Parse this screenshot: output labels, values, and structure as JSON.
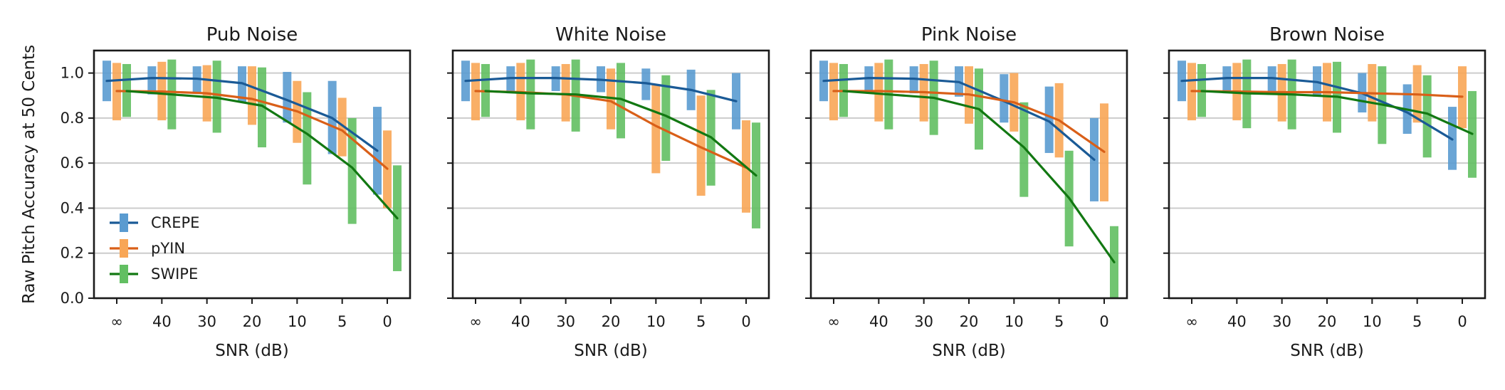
{
  "figure": {
    "ylabel": "Raw Pitch Accuracy at 50 Cents",
    "xlabel": "SNR (dB)",
    "legend_placement": "lower-left of first panel"
  },
  "chart_data": [
    {
      "type": "line",
      "title": "Pub Noise",
      "xlabel": "SNR (dB)",
      "ylabel": "Raw Pitch Accuracy at 50 Cents",
      "categories": [
        "∞",
        "40",
        "30",
        "20",
        "10",
        "5",
        "0"
      ],
      "ylim": [
        0,
        1.1
      ],
      "yticks": [
        "0.0",
        "0.2",
        "0.4",
        "0.6",
        "0.8",
        "1.0"
      ],
      "grid": "horizontal",
      "series": [
        {
          "name": "CREPE",
          "color": "#1a5a96",
          "bar_color": "#5a9bd0",
          "values": [
            0.965,
            0.978,
            0.975,
            0.955,
            0.88,
            0.8,
            0.655
          ],
          "low": [
            0.875,
            0.905,
            0.91,
            0.87,
            0.78,
            0.64,
            0.46
          ],
          "high": [
            1.055,
            1.03,
            1.03,
            1.03,
            1.005,
            0.965,
            0.85
          ]
        },
        {
          "name": "pYIN",
          "color": "#d95f18",
          "bar_color": "#f8a656",
          "values": [
            0.92,
            0.918,
            0.91,
            0.885,
            0.83,
            0.745,
            0.575
          ],
          "low": [
            0.79,
            0.79,
            0.785,
            0.77,
            0.69,
            0.63,
            0.4
          ],
          "high": [
            1.045,
            1.05,
            1.035,
            1.03,
            0.965,
            0.89,
            0.745
          ]
        },
        {
          "name": "SWIPE",
          "color": "#127812",
          "bar_color": "#62bf62",
          "values": [
            0.92,
            0.905,
            0.89,
            0.855,
            0.73,
            0.58,
            0.355
          ],
          "low": [
            0.805,
            0.75,
            0.735,
            0.67,
            0.505,
            0.33,
            0.12
          ],
          "high": [
            1.04,
            1.06,
            1.055,
            1.025,
            0.915,
            0.8,
            0.59
          ]
        }
      ]
    },
    {
      "type": "line",
      "title": "White Noise",
      "xlabel": "SNR (dB)",
      "categories": [
        "∞",
        "40",
        "30",
        "20",
        "10",
        "5",
        "0"
      ],
      "ylim": [
        0,
        1.1
      ],
      "grid": "horizontal",
      "series": [
        {
          "name": "CREPE",
          "color": "#1a5a96",
          "bar_color": "#5a9bd0",
          "values": [
            0.965,
            0.978,
            0.978,
            0.97,
            0.955,
            0.925,
            0.875
          ],
          "low": [
            0.875,
            0.91,
            0.92,
            0.915,
            0.88,
            0.835,
            0.75
          ],
          "high": [
            1.055,
            1.03,
            1.03,
            1.03,
            1.02,
            1.015,
            1.0
          ]
        },
        {
          "name": "pYIN",
          "color": "#d95f18",
          "bar_color": "#f8a656",
          "values": [
            0.92,
            0.915,
            0.905,
            0.875,
            0.765,
            0.67,
            0.58
          ],
          "low": [
            0.79,
            0.79,
            0.785,
            0.75,
            0.555,
            0.455,
            0.38
          ],
          "high": [
            1.045,
            1.045,
            1.04,
            1.02,
            0.95,
            0.9,
            0.79
          ]
        },
        {
          "name": "SWIPE",
          "color": "#127812",
          "bar_color": "#62bf62",
          "values": [
            0.92,
            0.91,
            0.905,
            0.885,
            0.81,
            0.715,
            0.545
          ],
          "low": [
            0.805,
            0.75,
            0.74,
            0.71,
            0.61,
            0.5,
            0.31
          ],
          "high": [
            1.04,
            1.06,
            1.06,
            1.045,
            0.99,
            0.925,
            0.78
          ]
        }
      ]
    },
    {
      "type": "line",
      "title": "Pink Noise",
      "xlabel": "SNR (dB)",
      "categories": [
        "∞",
        "40",
        "30",
        "20",
        "10",
        "5",
        "0"
      ],
      "ylim": [
        0,
        1.1
      ],
      "grid": "horizontal",
      "series": [
        {
          "name": "CREPE",
          "color": "#1a5a96",
          "bar_color": "#5a9bd0",
          "values": [
            0.965,
            0.978,
            0.975,
            0.96,
            0.875,
            0.785,
            0.615
          ],
          "low": [
            0.875,
            0.915,
            0.91,
            0.895,
            0.78,
            0.645,
            0.43
          ],
          "high": [
            1.055,
            1.03,
            1.03,
            1.03,
            0.995,
            0.94,
            0.8
          ]
        },
        {
          "name": "pYIN",
          "color": "#d95f18",
          "bar_color": "#f8a656",
          "values": [
            0.92,
            0.92,
            0.915,
            0.905,
            0.87,
            0.79,
            0.65
          ],
          "low": [
            0.79,
            0.785,
            0.785,
            0.775,
            0.74,
            0.625,
            0.43
          ],
          "high": [
            1.045,
            1.045,
            1.04,
            1.03,
            1.0,
            0.955,
            0.865
          ]
        },
        {
          "name": "SWIPE",
          "color": "#127812",
          "bar_color": "#62bf62",
          "values": [
            0.92,
            0.905,
            0.89,
            0.84,
            0.67,
            0.445,
            0.16
          ],
          "low": [
            0.805,
            0.75,
            0.725,
            0.66,
            0.45,
            0.23,
            0.0
          ],
          "high": [
            1.04,
            1.06,
            1.055,
            1.02,
            0.87,
            0.655,
            0.32
          ]
        }
      ]
    },
    {
      "type": "line",
      "title": "Brown Noise",
      "xlabel": "SNR (dB)",
      "categories": [
        "∞",
        "40",
        "30",
        "20",
        "10",
        "5",
        "0"
      ],
      "ylim": [
        0,
        1.1
      ],
      "grid": "horizontal",
      "series": [
        {
          "name": "CREPE",
          "color": "#1a5a96",
          "bar_color": "#5a9bd0",
          "values": [
            0.965,
            0.978,
            0.978,
            0.96,
            0.91,
            0.825,
            0.705
          ],
          "low": [
            0.875,
            0.91,
            0.915,
            0.895,
            0.825,
            0.73,
            0.57
          ],
          "high": [
            1.055,
            1.03,
            1.03,
            1.03,
            1.0,
            0.95,
            0.85
          ]
        },
        {
          "name": "pYIN",
          "color": "#d95f18",
          "bar_color": "#f8a656",
          "values": [
            0.92,
            0.918,
            0.915,
            0.915,
            0.91,
            0.905,
            0.895
          ],
          "low": [
            0.79,
            0.79,
            0.785,
            0.785,
            0.785,
            0.78,
            0.755
          ],
          "high": [
            1.045,
            1.045,
            1.04,
            1.045,
            1.04,
            1.035,
            1.03
          ]
        },
        {
          "name": "SWIPE",
          "color": "#127812",
          "bar_color": "#62bf62",
          "values": [
            0.92,
            0.91,
            0.905,
            0.895,
            0.86,
            0.82,
            0.73
          ],
          "low": [
            0.805,
            0.755,
            0.75,
            0.735,
            0.685,
            0.625,
            0.535
          ],
          "high": [
            1.04,
            1.06,
            1.06,
            1.05,
            1.03,
            0.99,
            0.92
          ]
        }
      ]
    }
  ]
}
